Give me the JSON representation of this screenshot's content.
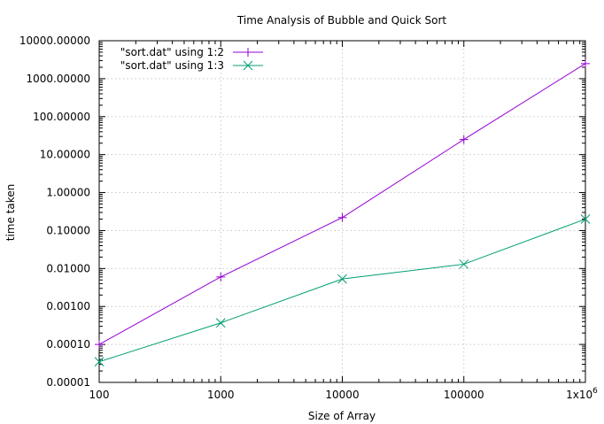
{
  "chart_data": {
    "type": "line",
    "title": "Time Analysis of Bubble and Quick Sort",
    "xlabel": "Size of Array",
    "ylabel": "time taken",
    "x_scale": "log",
    "y_scale": "log",
    "xlim": [
      100,
      1000000
    ],
    "ylim": [
      1e-05,
      10000
    ],
    "grid": true,
    "legend_position": "top-left",
    "x_ticks": [
      100,
      1000,
      10000,
      100000,
      1000000
    ],
    "x_tick_labels": [
      "100",
      "1000",
      "10000",
      "100000",
      "1x10^6"
    ],
    "y_ticks": [
      1e-05,
      0.0001,
      0.001,
      0.01,
      0.1,
      1,
      10,
      100,
      1000,
      10000
    ],
    "y_tick_labels": [
      "0.00001",
      "0.00010",
      "0.00100",
      "0.01000",
      "0.10000",
      "1.00000",
      "10.00000",
      "100.00000",
      "1000.00000",
      "10000.00000"
    ],
    "x": [
      100,
      1000,
      10000,
      100000,
      1000000
    ],
    "series": [
      {
        "name": "\"sort.dat\" using 1:2",
        "color": "#9400d3",
        "marker": "plus",
        "values": [
          0.0001,
          0.006,
          0.22,
          25,
          2500
        ]
      },
      {
        "name": "\"sort.dat\" using 1:3",
        "color": "#009e73",
        "marker": "cross",
        "values": [
          3.5e-05,
          0.00037,
          0.0053,
          0.013,
          0.2
        ]
      }
    ]
  }
}
